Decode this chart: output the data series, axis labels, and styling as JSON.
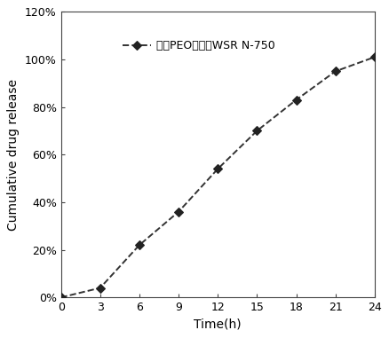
{
  "x": [
    0,
    3,
    6,
    9,
    12,
    15,
    18,
    21,
    24
  ],
  "y": [
    0,
    4,
    22,
    36,
    54,
    70,
    83,
    95,
    101
  ],
  "line_color": "#333333",
  "marker": "D",
  "marker_color": "#222222",
  "marker_size": 5,
  "line_style": "--",
  "line_width": 1.4,
  "xlabel": "Time(h)",
  "ylabel": "Cumulative drug release",
  "xlim": [
    0,
    24
  ],
  "ylim": [
    0,
    120
  ],
  "xticks": [
    0,
    3,
    6,
    9,
    12,
    15,
    18,
    21,
    24
  ],
  "yticks": [
    0,
    20,
    40,
    60,
    80,
    100,
    120
  ],
  "ytick_labels": [
    "0%",
    "20%",
    "40%",
    "60%",
    "80%",
    "100%",
    "120%"
  ],
  "legend_label_cn": "药层PEO型号：WSR N-750",
  "legend_label_ascii": "WSR N-750",
  "background_color": "#ffffff",
  "tick_fontsize": 9,
  "label_fontsize": 10,
  "legend_fontsize": 9
}
